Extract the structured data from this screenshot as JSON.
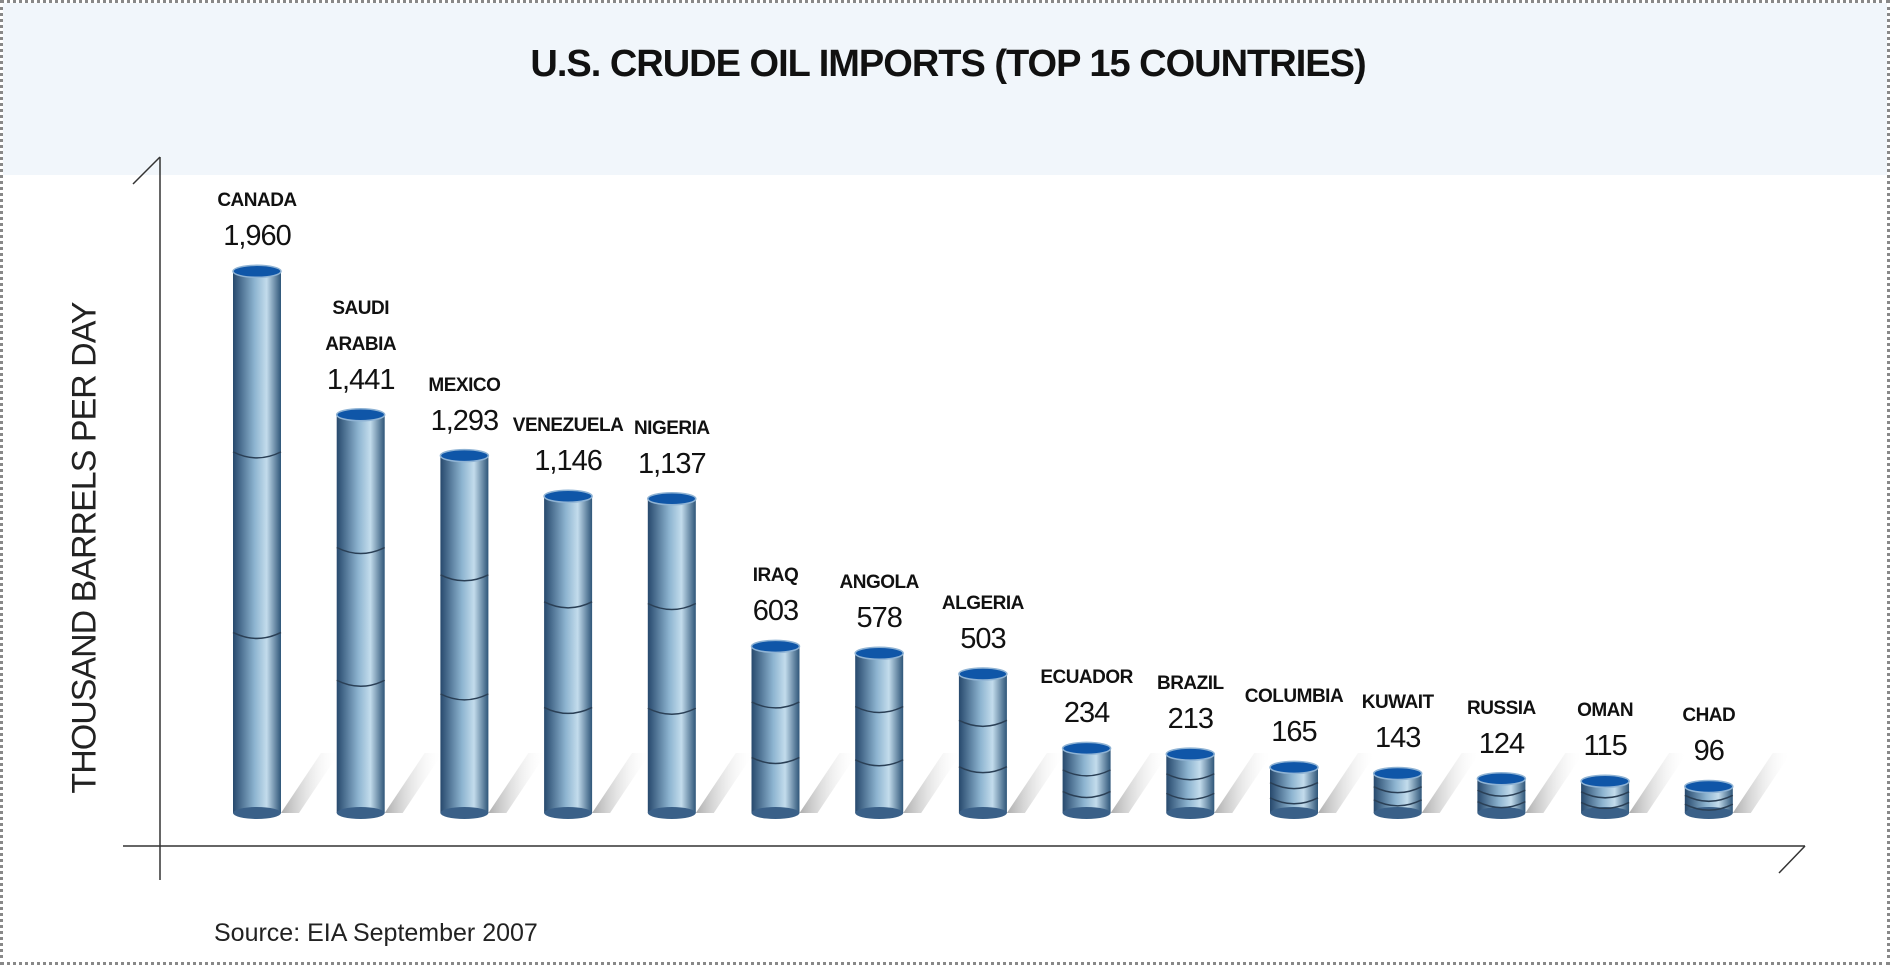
{
  "chart_data": {
    "type": "bar",
    "title": "U.S. CRUDE OIL IMPORTS (TOP 15 COUNTRIES)",
    "y_label": "THOUSAND BARRELS PER DAY",
    "source": "Source: EIA September 2007",
    "categories": [
      "CANADA",
      "SAUDI ARABIA",
      "MEXICO",
      "VENEZUELA",
      "NIGERIA",
      "IRAQ",
      "ANGOLA",
      "ALGERIA",
      "ECUADOR",
      "BRAZIL",
      "COLUMBIA",
      "KUWAIT",
      "RUSSIA",
      "OMAN",
      "CHAD"
    ],
    "values": [
      1960,
      1441,
      1293,
      1146,
      1137,
      603,
      578,
      503,
      234,
      213,
      165,
      143,
      124,
      115,
      96
    ],
    "value_labels": [
      "1,960",
      "1,441",
      "1,293",
      "1,146",
      "1,137",
      "603",
      "578",
      "503",
      "234",
      "213",
      "165",
      "143",
      "124",
      "115",
      "96"
    ],
    "color": "#5b8bb0",
    "ylim": [
      0,
      2370
    ]
  }
}
